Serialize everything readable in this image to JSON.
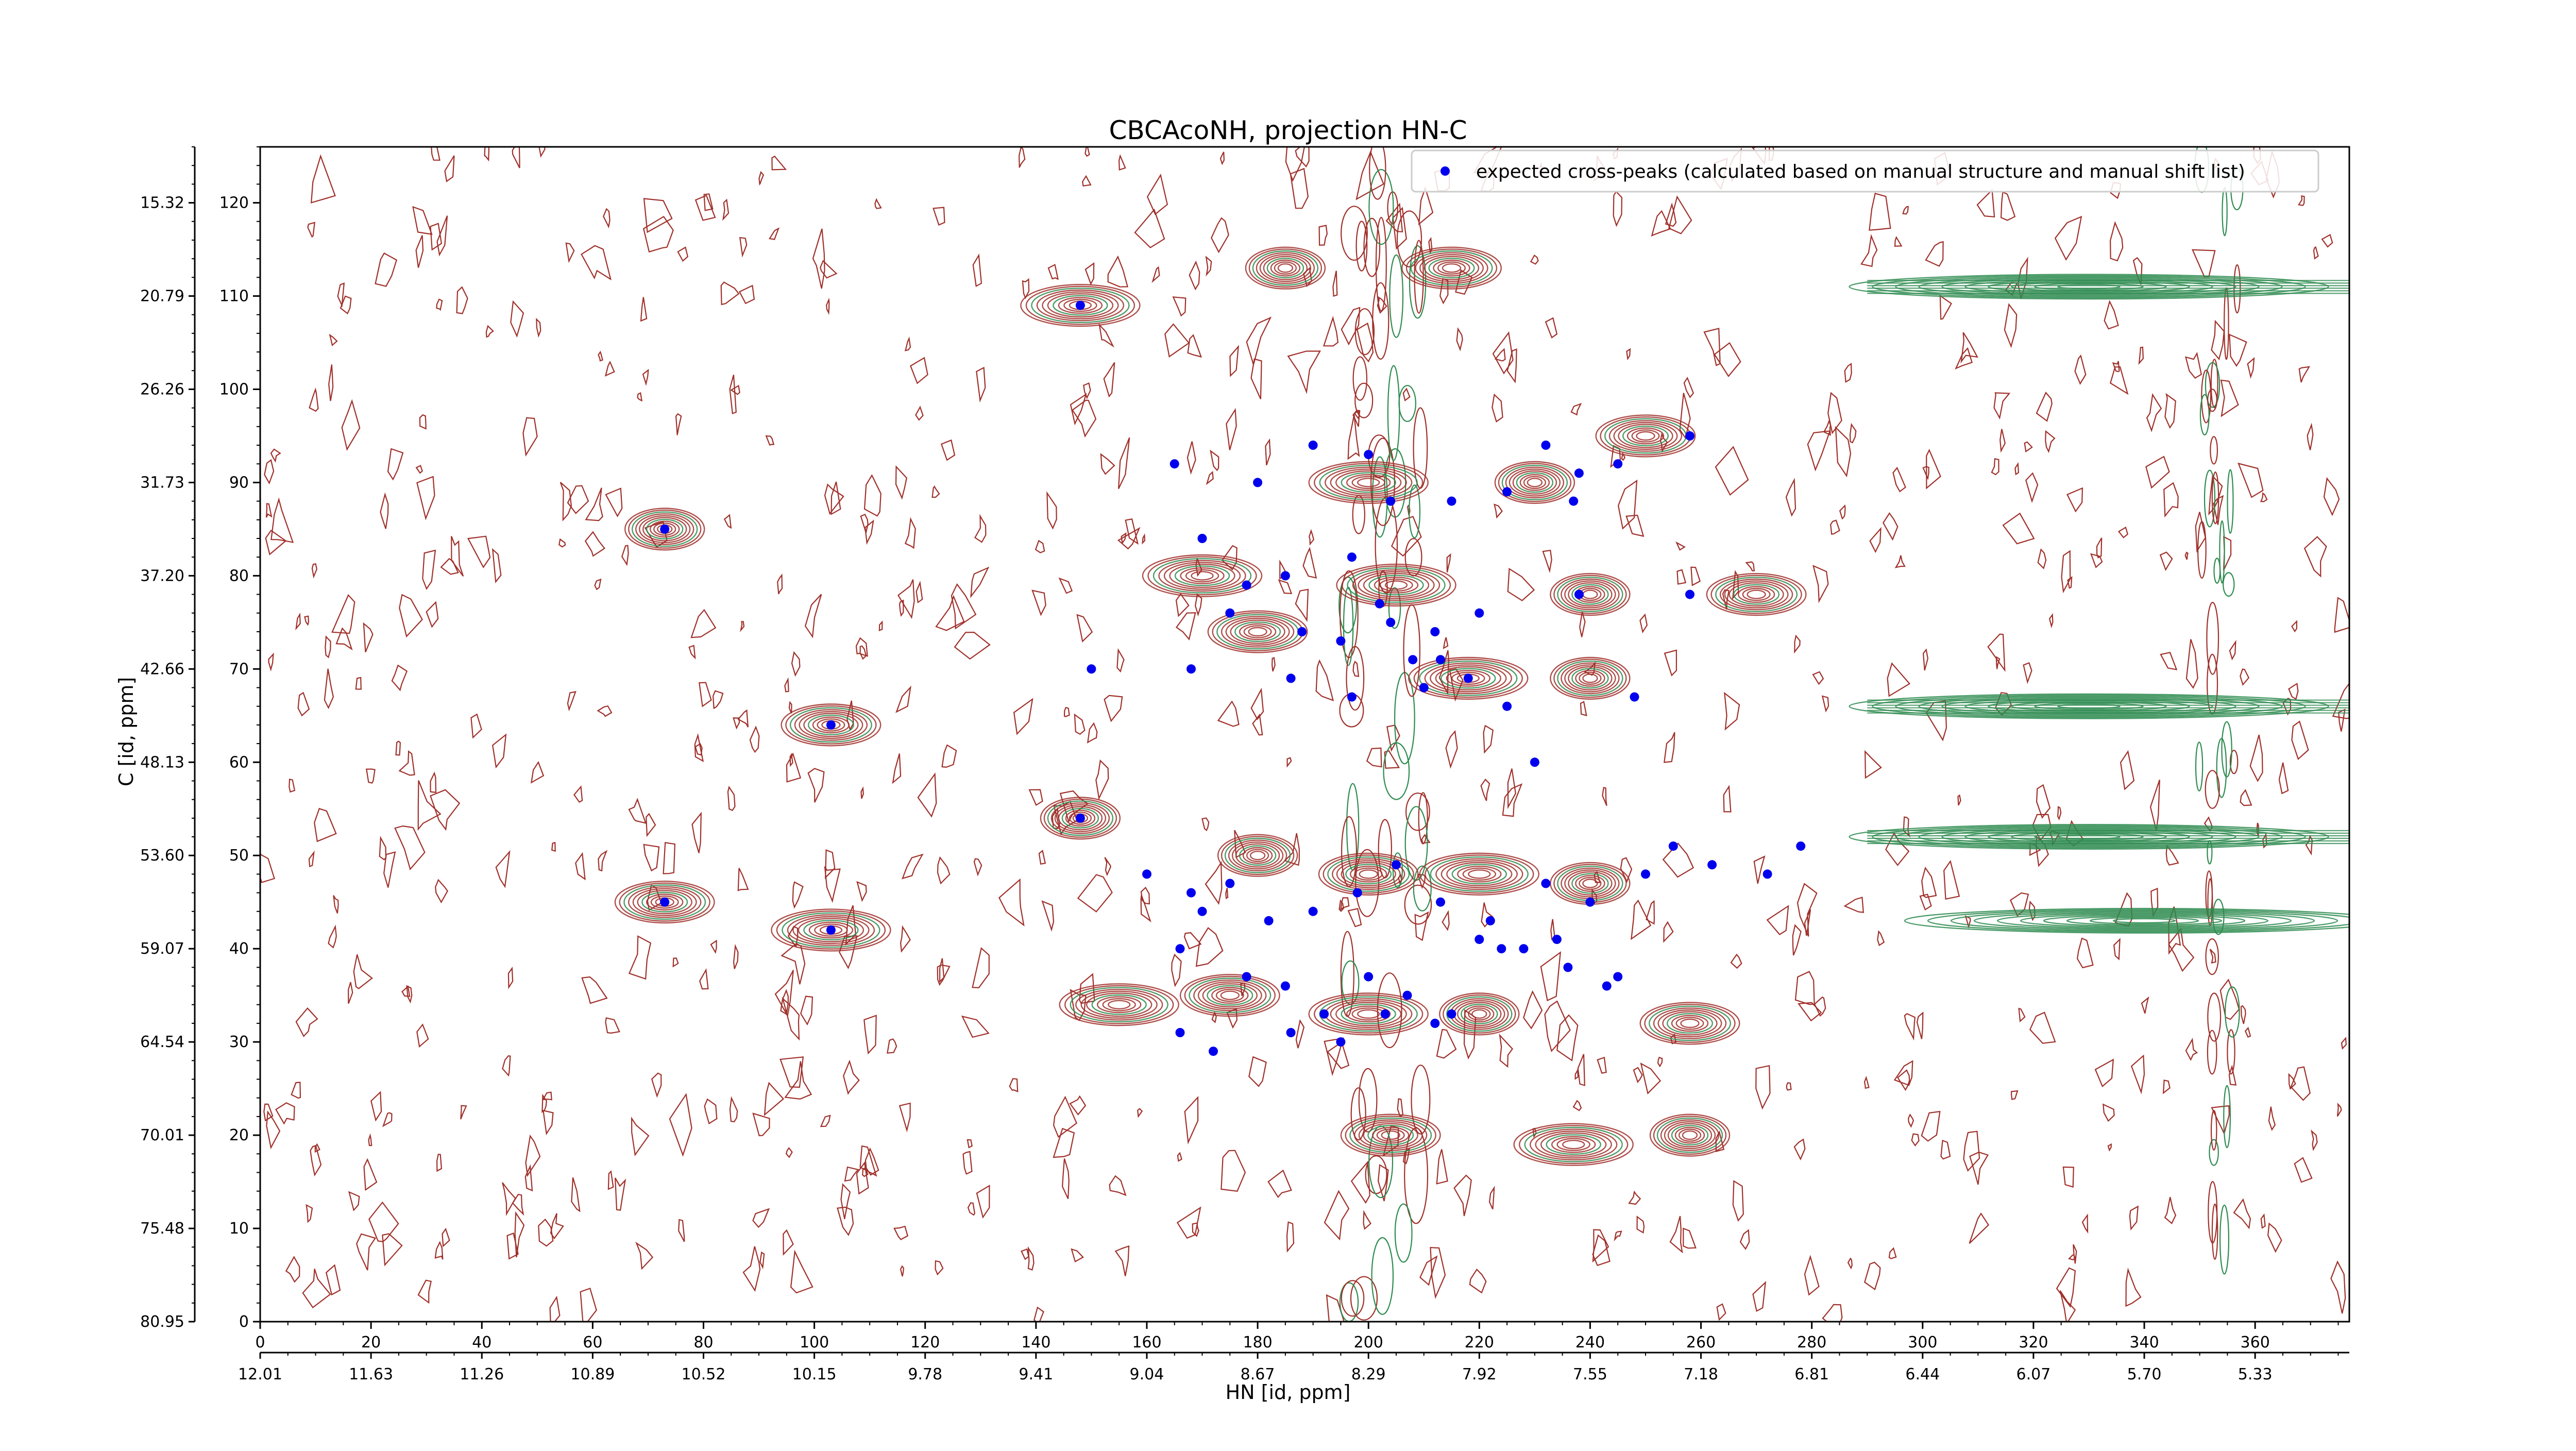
{
  "chart_data": {
    "type": "scatter",
    "title": "CBCAcoNH, projection HN-C",
    "xlabel": "HN [id, ppm]",
    "ylabel": "C [id, ppm]",
    "xlim": [
      0,
      377
    ],
    "ylim": [
      0,
      126
    ],
    "x_ticks": [
      0,
      20,
      40,
      60,
      80,
      100,
      120,
      140,
      160,
      180,
      200,
      220,
      240,
      260,
      280,
      300,
      320,
      340,
      360
    ],
    "x_ppm_tick_labels": [
      "12.01",
      "11.63",
      "11.26",
      "10.89",
      "10.52",
      "10.15",
      "9.78",
      "9.41",
      "9.04",
      "8.67",
      "8.29",
      "7.92",
      "7.55",
      "7.18",
      "6.81",
      "6.44",
      "6.07",
      "5.70",
      "5.33"
    ],
    "y_ticks": [
      0,
      10,
      20,
      30,
      40,
      50,
      60,
      70,
      80,
      90,
      100,
      110,
      120
    ],
    "y_ppm_tick_labels": [
      "80.95",
      "75.48",
      "70.01",
      "64.54",
      "59.07",
      "53.60",
      "48.13",
      "42.66",
      "37.20",
      "31.73",
      "26.26",
      "20.79",
      "15.32"
    ],
    "legend": {
      "position": "top-right",
      "entries": [
        "expected cross-peaks (calculated based on manual structure and manual shift list)"
      ]
    },
    "colors": {
      "positive_contour": "#a0302a",
      "negative_contour": "#2e8b50",
      "peak_marker": "#0000ee"
    },
    "series": [
      {
        "name": "expected cross-peaks (calculated based on manual structure and manual shift list)",
        "x": [
          73,
          103,
          148,
          73,
          103,
          148,
          160,
          170,
          166,
          168,
          175,
          182,
          190,
          198,
          205,
          213,
          222,
          232,
          240,
          250,
          255,
          262,
          272,
          278,
          178,
          185,
          192,
          200,
          207,
          215,
          224,
          234,
          243,
          166,
          172,
          186,
          195,
          203,
          212,
          220,
          228,
          236,
          245,
          186,
          197,
          210,
          218,
          225,
          230,
          248,
          175,
          185,
          195,
          202,
          208,
          213,
          150,
          168,
          178,
          188,
          197,
          204,
          212,
          220,
          238,
          258,
          204,
          237,
          258,
          165,
          170,
          180,
          190,
          200,
          215,
          225,
          232,
          238,
          245
        ],
        "y": [
          85,
          64,
          54,
          45,
          42,
          109,
          48,
          44,
          40,
          46,
          47,
          43,
          44,
          46,
          49,
          45,
          43,
          47,
          45,
          48,
          51,
          49,
          48,
          51,
          37,
          36,
          33,
          37,
          35,
          33,
          40,
          41,
          36,
          31,
          29,
          31,
          30,
          33,
          32,
          41,
          40,
          38,
          37,
          69,
          67,
          68,
          69,
          66,
          60,
          67,
          76,
          80,
          73,
          77,
          71,
          71,
          70,
          70,
          79,
          74,
          82,
          75,
          74,
          76,
          78,
          78,
          88,
          88,
          95,
          92,
          84,
          90,
          94,
          93,
          88,
          89,
          94,
          91,
          92
        ],
        "marker": "o",
        "color": "#0000ee"
      }
    ],
    "contour_centers": [
      [
        73,
        85
      ],
      [
        103,
        64
      ],
      [
        148,
        109
      ],
      [
        148,
        54
      ],
      [
        73,
        45
      ],
      [
        103,
        42
      ],
      [
        185,
        113
      ],
      [
        215,
        113
      ],
      [
        218,
        69
      ],
      [
        240,
        69
      ],
      [
        180,
        74
      ],
      [
        200,
        90
      ],
      [
        230,
        90
      ],
      [
        250,
        95
      ],
      [
        205,
        79
      ],
      [
        240,
        78
      ],
      [
        270,
        78
      ],
      [
        170,
        80
      ],
      [
        180,
        50
      ],
      [
        200,
        48
      ],
      [
        220,
        48
      ],
      [
        240,
        47
      ],
      [
        175,
        35
      ],
      [
        200,
        33
      ],
      [
        220,
        33
      ],
      [
        258,
        32
      ],
      [
        237,
        19
      ],
      [
        258,
        20
      ],
      [
        204,
        20
      ],
      [
        155,
        34
      ],
      [
        330,
        111
      ],
      [
        330,
        66
      ],
      [
        330,
        52
      ],
      [
        340,
        43
      ]
    ],
    "grid": false
  }
}
